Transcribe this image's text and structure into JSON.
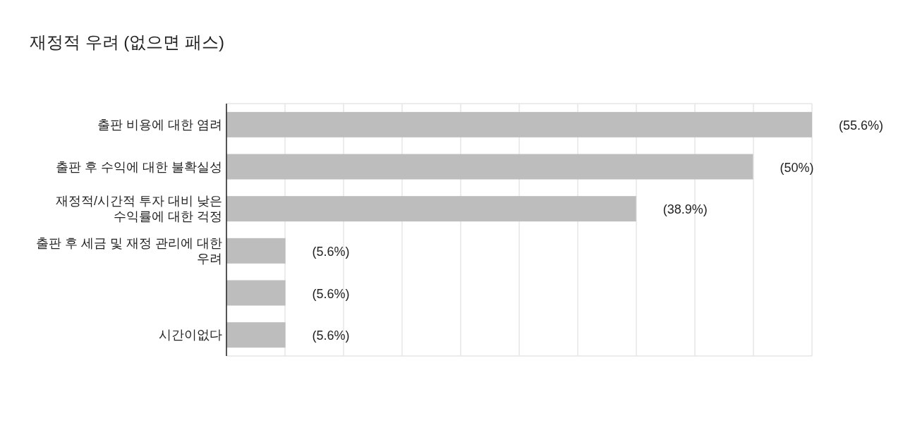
{
  "chart_data": {
    "type": "bar",
    "orientation": "horizontal",
    "title": "재정적 우려 (없으면 패스)",
    "categories": [
      "출판 비용에 대한 염려",
      "출판 후 수익에 대한 불확실성",
      "재정적/시간적 투자 대비 낮은 수익률에 대한 걱정",
      "출판 후 세금 및 재정 관리에 대한 우려",
      null,
      "시간이없다"
    ],
    "values": [
      55.6,
      50,
      38.9,
      5.6,
      5.6,
      5.6
    ],
    "value_labels": [
      "(55.6%)",
      "(50%)",
      "(38.9%)",
      "(5.6%)",
      "(5.6%)",
      "(5.6%)"
    ],
    "color": "#bdbdbd",
    "xlim": [
      0,
      55.6
    ],
    "xticks": [
      {
        "value": 0,
        "label": null
      },
      {
        "value": 5.56,
        "label": null
      },
      {
        "value": 11.12,
        "label": null
      },
      {
        "value": 16.68,
        "label": null
      },
      {
        "value": 22.24,
        "label": null
      },
      {
        "value": 27.8,
        "label": null
      },
      {
        "value": 33.36,
        "label": null
      },
      {
        "value": 38.92,
        "label": null
      },
      {
        "value": 44.48,
        "label": null
      },
      {
        "value": 50.04,
        "label": null
      },
      {
        "value": 55.6,
        "label": null
      }
    ],
    "grid": "x"
  }
}
